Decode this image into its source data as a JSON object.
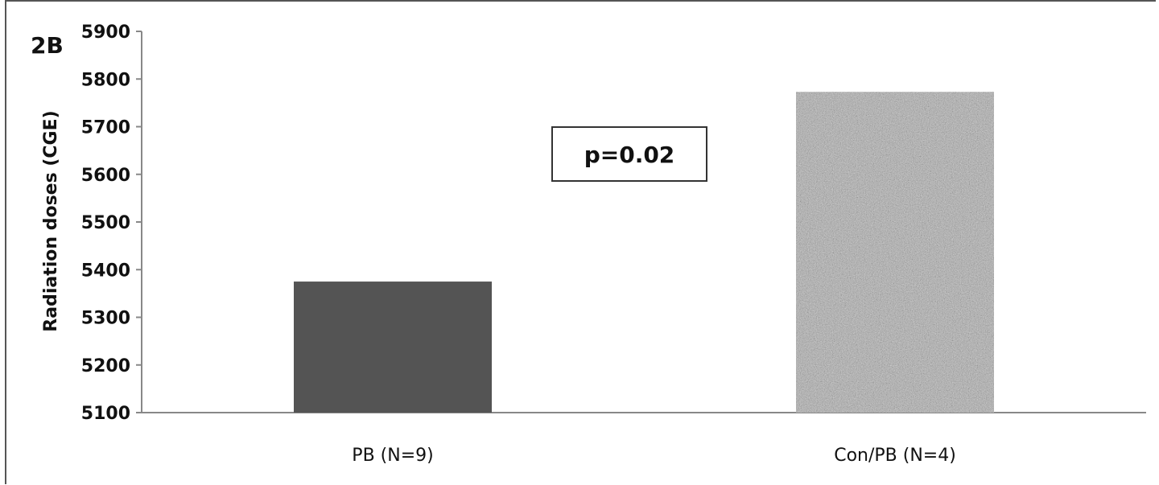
{
  "panel_label": "2B",
  "annotation": "p=0.02",
  "colors": {
    "bar_pb": "#545454",
    "bar_conpb": "#a8a8a8",
    "axis": "#888888",
    "text": "#111111"
  },
  "chart_data": {
    "type": "bar",
    "title": "",
    "xlabel": "",
    "ylabel": "Radiation doses (CGE)",
    "categories": [
      "PB (N=9)",
      "Con/PB (N=4)"
    ],
    "values": [
      5375,
      5773
    ],
    "ylim": [
      5100,
      5900
    ],
    "yticks": [
      5100,
      5200,
      5300,
      5400,
      5500,
      5600,
      5700,
      5800,
      5900
    ],
    "grid": false,
    "legend": "none"
  }
}
